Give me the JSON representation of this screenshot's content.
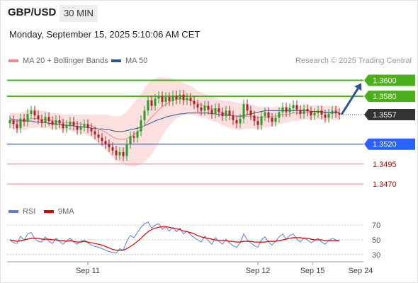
{
  "header": {
    "symbol": "GBP/USD",
    "timeframe": "30 MIN",
    "datetime": "Monday, September 15, 2025 5:10:06 AM CET"
  },
  "legend": {
    "main": [
      {
        "label": "MA 20 + Bollinger Bands",
        "color": "#f08a8a"
      },
      {
        "label": "MA 50",
        "color": "#2f5597"
      }
    ],
    "credit": "Research © 2025 Trading Central",
    "rsi": [
      {
        "label": "RSI",
        "color": "#5b7fd6"
      },
      {
        "label": "9MA",
        "color": "#e00000"
      }
    ]
  },
  "colors": {
    "up_candle": "#26a026",
    "down_candle": "#b22222",
    "resistance": "#4caf1c",
    "pivot": "#2962ff",
    "support": "#e53935",
    "current": "#333333",
    "band_fill": "#fcdcdc",
    "ma20": "#f08a8a",
    "ma50": "#2f5597",
    "arrow": "#2f5597"
  },
  "chart_data": [
    {
      "type": "candlestick",
      "symbol": "GBP/USD",
      "interval": "30 MIN",
      "ylim": [
        1.3455,
        1.3612
      ],
      "x_ticks": [
        "Sep 11",
        "Sep 12",
        "Sep 15",
        "Sep 24"
      ],
      "tick_positions": {
        "Sep 11": 22,
        "Sep 12": 70,
        "Sep 15": 118
      },
      "series_names": [
        "MA 20 + Bollinger Bands",
        "MA 50"
      ],
      "close": [
        1.355,
        1.3545,
        1.354,
        1.3552,
        1.3548,
        1.3558,
        1.3562,
        1.3556,
        1.3551,
        1.3547,
        1.3554,
        1.3549,
        1.3544,
        1.355,
        1.3546,
        1.354,
        1.3544,
        1.3548,
        1.3543,
        1.3538,
        1.3542,
        1.3545,
        1.354,
        1.3536,
        1.3532,
        1.3528,
        1.3524,
        1.352,
        1.3516,
        1.3512,
        1.3506,
        1.351,
        1.3505,
        1.352,
        1.353,
        1.3528,
        1.3536,
        1.355,
        1.3562,
        1.3575,
        1.3568,
        1.3577,
        1.358,
        1.3573,
        1.3579,
        1.3574,
        1.3581,
        1.3576,
        1.3582,
        1.3575,
        1.3578,
        1.3574,
        1.357,
        1.3566,
        1.3562,
        1.3568,
        1.3563,
        1.3558,
        1.3565,
        1.356,
        1.3555,
        1.3562,
        1.3556,
        1.355,
        1.3546,
        1.3552,
        1.357,
        1.3562,
        1.3556,
        1.3549,
        1.3544,
        1.3555,
        1.356,
        1.3553,
        1.3548,
        1.3553,
        1.356,
        1.3566,
        1.356,
        1.3565,
        1.3569,
        1.3563,
        1.3558,
        1.3564,
        1.3561,
        1.3556,
        1.3559,
        1.3562,
        1.3557,
        1.3553,
        1.3558,
        1.3562,
        1.3559,
        1.3557
      ],
      "ma20": [
        1.355,
        1.3549,
        1.3548,
        1.3549,
        1.3549,
        1.3551,
        1.3552,
        1.3552,
        1.3552,
        1.3551,
        1.3551,
        1.355,
        1.3549,
        1.3549,
        1.3548,
        1.3547,
        1.3547,
        1.3547,
        1.3546,
        1.3546,
        1.3545,
        1.3545,
        1.3544,
        1.3543,
        1.3541,
        1.3539,
        1.3537,
        1.3535,
        1.3532,
        1.3529,
        1.3527,
        1.3526,
        1.3526,
        1.3527,
        1.3529,
        1.3532,
        1.3535,
        1.3539,
        1.3544,
        1.3549,
        1.3554,
        1.3558,
        1.3563,
        1.3567,
        1.357,
        1.3573,
        1.3575,
        1.3576,
        1.3577,
        1.3577,
        1.3576,
        1.3575,
        1.3573,
        1.3571,
        1.3569,
        1.3568,
        1.3566,
        1.3564,
        1.3563,
        1.3561,
        1.3559,
        1.3558,
        1.3557,
        1.3556,
        1.3555,
        1.3554,
        1.3555,
        1.3555,
        1.3555,
        1.3554,
        1.3553,
        1.3553,
        1.3554,
        1.3554,
        1.3554,
        1.3555,
        1.3556,
        1.3557,
        1.3557,
        1.3558,
        1.3559,
        1.3559,
        1.3559,
        1.356,
        1.356,
        1.356,
        1.356,
        1.356,
        1.356,
        1.3559,
        1.3559,
        1.3559,
        1.3559,
        1.3559
      ],
      "bb_width": [
        0.001,
        0.001,
        0.0011,
        0.0011,
        0.0012,
        0.0012,
        0.0012,
        0.0012,
        0.0011,
        0.0011,
        0.0011,
        0.001,
        0.001,
        0.001,
        0.001,
        0.001,
        0.001,
        0.001,
        0.0011,
        0.0011,
        0.0012,
        0.0012,
        0.0013,
        0.0014,
        0.0016,
        0.0018,
        0.002,
        0.0022,
        0.0024,
        0.0026,
        0.0028,
        0.0029,
        0.0031,
        0.0034,
        0.0037,
        0.004,
        0.0042,
        0.0044,
        0.0046,
        0.0047,
        0.0046,
        0.0044,
        0.0041,
        0.0037,
        0.0033,
        0.003,
        0.0027,
        0.0024,
        0.0022,
        0.002,
        0.0019,
        0.0018,
        0.0017,
        0.0016,
        0.0016,
        0.0015,
        0.0015,
        0.0015,
        0.0015,
        0.0015,
        0.0016,
        0.0016,
        0.0017,
        0.0017,
        0.0017,
        0.0017,
        0.0016,
        0.0016,
        0.0015,
        0.0015,
        0.0014,
        0.0014,
        0.0013,
        0.0013,
        0.0012,
        0.0012,
        0.0011,
        0.0011,
        0.001,
        0.001,
        0.001,
        0.001,
        0.0009,
        0.0009,
        0.0009,
        0.0009,
        0.0009,
        0.0009,
        0.0009,
        0.0009,
        0.0009,
        0.0009,
        0.0009,
        0.0009
      ],
      "ma50": [
        1.3552,
        1.3551,
        1.355,
        1.355,
        1.3549,
        1.3549,
        1.3549,
        1.3548,
        1.3548,
        1.3547,
        1.3547,
        1.3546,
        1.3546,
        1.3545,
        1.3545,
        1.3544,
        1.3544,
        1.3543,
        1.3543,
        1.3542,
        1.3542,
        1.3541,
        1.3541,
        1.354,
        1.354,
        1.3539,
        1.3539,
        1.3538,
        1.3538,
        1.3537,
        1.3536,
        1.3536,
        1.3536,
        1.3537,
        1.3538,
        1.3539,
        1.354,
        1.3541,
        1.3543,
        1.3545,
        1.3547,
        1.3549,
        1.3551,
        1.3552,
        1.3554,
        1.3555,
        1.3556,
        1.3557,
        1.3558,
        1.3558,
        1.3559,
        1.3559,
        1.3559,
        1.3559,
        1.3559,
        1.3559,
        1.3559,
        1.3558,
        1.3558,
        1.3557,
        1.3557,
        1.3556,
        1.3556,
        1.3556,
        1.3555,
        1.3555,
        1.3556,
        1.3557,
        1.3558,
        1.3559,
        1.356,
        1.3561,
        1.3562,
        1.3562,
        1.3562,
        1.3562,
        1.3562,
        1.3562,
        1.3562,
        1.3562,
        1.3562,
        1.3562,
        1.3562,
        1.3562,
        1.3562,
        1.3561,
        1.3561,
        1.3561,
        1.3561,
        1.356,
        1.356,
        1.356,
        1.356,
        1.356
      ],
      "levels": [
        {
          "value": 1.36,
          "label": "1.3600",
          "kind": "resistance"
        },
        {
          "value": 1.358,
          "label": "1.3580",
          "kind": "resistance"
        },
        {
          "value": 1.3557,
          "label": "1.3557",
          "kind": "current"
        },
        {
          "value": 1.352,
          "label": "1.3520",
          "kind": "pivot"
        },
        {
          "value": 1.3495,
          "label": "1.3495",
          "kind": "support"
        },
        {
          "value": 1.347,
          "label": "1.3470",
          "kind": "support"
        }
      ],
      "forecast_arrow": {
        "from": 1.3557,
        "to": 1.36
      }
    },
    {
      "type": "line",
      "name": "RSI",
      "ylim": [
        25,
        75
      ],
      "y_ticks": [
        70,
        50,
        30
      ],
      "series": [
        {
          "name": "RSI",
          "values": [
            50,
            46,
            45,
            55,
            49,
            58,
            60,
            52,
            48,
            47,
            54,
            48,
            45,
            52,
            48,
            44,
            49,
            52,
            47,
            44,
            48,
            50,
            46,
            43,
            41,
            40,
            38,
            36,
            34,
            33,
            32,
            38,
            36,
            48,
            56,
            53,
            60,
            67,
            72,
            74,
            66,
            70,
            72,
            64,
            68,
            62,
            67,
            61,
            66,
            58,
            62,
            57,
            53,
            50,
            47,
            55,
            49,
            44,
            53,
            48,
            44,
            51,
            46,
            42,
            40,
            46,
            58,
            50,
            46,
            42,
            40,
            50,
            54,
            47,
            43,
            48,
            54,
            58,
            51,
            56,
            58,
            51,
            47,
            53,
            50,
            46,
            49,
            52,
            47,
            44,
            49,
            52,
            50,
            49
          ]
        },
        {
          "name": "9MA",
          "values": [
            50,
            49,
            48,
            49,
            50,
            51,
            52,
            52,
            52,
            51,
            51,
            51,
            50,
            50,
            49,
            49,
            48,
            49,
            48,
            47,
            47,
            48,
            47,
            46,
            45,
            44,
            43,
            41,
            39,
            37,
            36,
            36,
            36,
            38,
            41,
            44,
            48,
            52,
            57,
            61,
            64,
            66,
            67,
            68,
            68,
            67,
            66,
            65,
            64,
            62,
            61,
            60,
            58,
            56,
            54,
            53,
            52,
            51,
            50,
            49,
            49,
            49,
            48,
            48,
            47,
            47,
            48,
            48,
            48,
            47,
            47,
            47,
            47,
            48,
            48,
            48,
            49,
            50,
            51,
            52,
            53,
            53,
            53,
            52,
            52,
            51,
            50,
            50,
            50,
            49,
            49,
            49,
            49,
            49
          ]
        }
      ]
    }
  ]
}
